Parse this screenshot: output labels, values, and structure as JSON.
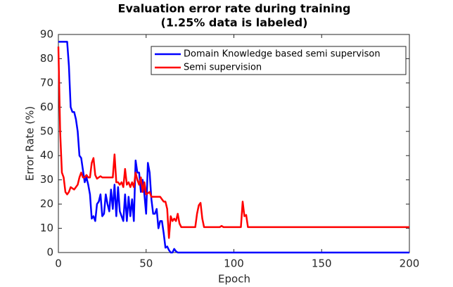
{
  "chart_data": {
    "type": "line",
    "title": [
      "Evaluation error rate during training",
      "(1.25% data is labeled)"
    ],
    "xlabel": "Epoch",
    "ylabel": "Error Rate (%)",
    "xlim": [
      0,
      200
    ],
    "ylim": [
      0,
      90
    ],
    "xticks": [
      0,
      50,
      100,
      150,
      200
    ],
    "yticks": [
      0,
      10,
      20,
      30,
      40,
      50,
      60,
      70,
      80,
      90
    ],
    "grid": false,
    "legend": "upper right",
    "series": [
      {
        "name": "Domain Knowledge based semi supervison",
        "color": "#0000ff",
        "x": [
          0,
          5,
          6,
          7,
          8,
          9,
          10,
          11,
          12,
          13,
          14,
          15,
          16,
          17,
          18,
          19,
          20,
          21,
          22,
          23,
          24,
          25,
          26,
          27,
          28,
          29,
          30,
          31,
          32,
          33,
          34,
          35,
          36,
          37,
          38,
          39,
          40,
          41,
          42,
          43,
          44,
          45,
          46,
          47,
          48,
          49,
          50,
          51,
          52,
          53,
          54,
          55,
          56,
          57,
          58,
          59,
          60,
          61,
          62,
          63,
          64,
          65,
          66,
          67,
          68,
          200
        ],
        "values": [
          87,
          87,
          77,
          60,
          58,
          58,
          55,
          50,
          40,
          39,
          34,
          29,
          31,
          28,
          24,
          14,
          15,
          13,
          20,
          21,
          24,
          15,
          16,
          24,
          20,
          17,
          26,
          18,
          28,
          15,
          27,
          17,
          15,
          13,
          24,
          13,
          23,
          15,
          22,
          13,
          38,
          33,
          33,
          25,
          30,
          24,
          16,
          37,
          33,
          22,
          16,
          16,
          18,
          10,
          13,
          13,
          8,
          2,
          2.5,
          1,
          0,
          0,
          1.5,
          0.5,
          0,
          0
        ]
      },
      {
        "name": "Semi supervision",
        "color": "#ff0000",
        "x": [
          0,
          1,
          2,
          3,
          4,
          5,
          6,
          7,
          8,
          9,
          10,
          11,
          12,
          13,
          14,
          15,
          16,
          17,
          18,
          19,
          20,
          21,
          22,
          23,
          24,
          25,
          30,
          31,
          32,
          33,
          34,
          35,
          36,
          37,
          38,
          39,
          40,
          41,
          42,
          43,
          44,
          45,
          46,
          47,
          48,
          49,
          50,
          52,
          53,
          58,
          59,
          60,
          61,
          62,
          63,
          64,
          65,
          66,
          67,
          68,
          69,
          70,
          78,
          79,
          80,
          81,
          82,
          83,
          92,
          93,
          94,
          104,
          105,
          106,
          107,
          108,
          200
        ],
        "values": [
          85,
          50,
          33,
          31,
          25,
          24,
          25,
          27,
          26.5,
          26,
          27,
          28,
          31,
          33,
          31,
          31,
          32,
          31,
          31,
          37,
          39,
          32,
          30.5,
          31,
          31.5,
          31,
          31,
          31,
          40.5,
          29,
          29,
          28,
          29,
          27,
          34.5,
          28,
          29,
          27,
          29,
          27,
          33,
          30,
          28,
          31,
          25,
          29,
          24,
          25,
          23,
          23,
          22,
          21,
          21,
          18,
          6,
          15,
          13,
          14,
          13,
          16,
          12,
          10.5,
          10.5,
          16,
          19.5,
          20.5,
          14,
          10.5,
          10.5,
          11,
          10.5,
          10.5,
          21,
          15,
          15.5,
          10.5,
          10.5
        ]
      }
    ]
  }
}
